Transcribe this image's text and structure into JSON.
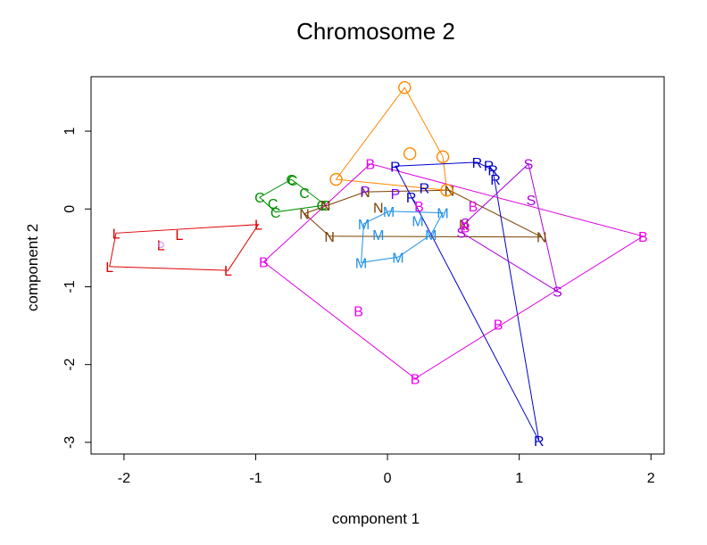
{
  "chart_data": {
    "type": "scatter",
    "title": "Chromosome 2",
    "xlabel": "component 1",
    "ylabel": "component 2",
    "xlim": [
      -2.25,
      2.1
    ],
    "ylim": [
      -3.15,
      1.7
    ],
    "xticks": [
      -2,
      -1,
      0,
      1,
      2
    ],
    "xtick_labels": [
      "-2",
      "-1",
      "0",
      "1",
      "2"
    ],
    "yticks": [
      -3,
      -2,
      -1,
      0,
      1
    ],
    "ytick_labels": [
      "-3",
      "-2",
      "-1",
      "0",
      "1"
    ],
    "grid": false,
    "series": [
      {
        "name": "L",
        "color": "#e00000",
        "points": [
          [
            -2.11,
            -0.74
          ],
          [
            -2.06,
            -0.31
          ],
          [
            -1.72,
            -0.46
          ],
          [
            -1.58,
            -0.33
          ],
          [
            -1.21,
            -0.79
          ],
          [
            -0.98,
            -0.2
          ]
        ],
        "hull": [
          [
            -2.11,
            -0.74
          ],
          [
            -2.06,
            -0.31
          ],
          [
            -0.98,
            -0.2
          ],
          [
            -1.21,
            -0.79
          ]
        ],
        "hull_color": "#e00000",
        "extra_marks": [
          {
            "symbol": "o",
            "color": "#c080ff",
            "x": -1.72,
            "y": -0.46
          }
        ]
      },
      {
        "name": "C",
        "color": "#009000",
        "points": [
          [
            -0.97,
            0.15
          ],
          [
            -0.87,
            0.07
          ],
          [
            -0.85,
            -0.04
          ],
          [
            -0.73,
            0.38
          ],
          [
            -0.72,
            0.37
          ],
          [
            -0.63,
            0.21
          ],
          [
            -0.5,
            0.05
          ],
          [
            -0.47,
            0.05
          ]
        ],
        "hull": [
          [
            -0.97,
            0.15
          ],
          [
            -0.73,
            0.38
          ],
          [
            -0.47,
            0.05
          ],
          [
            -0.85,
            -0.04
          ]
        ],
        "hull_color": "#009000"
      },
      {
        "name": "N",
        "color": "#7a4000",
        "points": [
          [
            -0.63,
            -0.06
          ],
          [
            -0.47,
            0.05
          ],
          [
            -0.44,
            -0.35
          ],
          [
            -0.17,
            0.22
          ],
          [
            -0.07,
            0.02
          ],
          [
            0.47,
            0.24
          ],
          [
            0.58,
            -0.2
          ],
          [
            1.17,
            -0.36
          ]
        ],
        "hull": [
          [
            -0.63,
            -0.06
          ],
          [
            -0.17,
            0.22
          ],
          [
            0.47,
            0.24
          ],
          [
            1.17,
            -0.36
          ],
          [
            -0.44,
            -0.35
          ]
        ],
        "hull_color": "#7a4000"
      },
      {
        "name": "O",
        "color": "#ff8800",
        "points": [
          [
            -0.39,
            0.38
          ],
          [
            0.13,
            1.56
          ],
          [
            0.17,
            0.71
          ],
          [
            0.42,
            0.67
          ],
          [
            0.45,
            0.24
          ]
        ],
        "hull": [
          [
            -0.39,
            0.38
          ],
          [
            0.13,
            1.56
          ],
          [
            0.42,
            0.67
          ],
          [
            0.45,
            0.24
          ]
        ],
        "hull_color": "#ff8800"
      },
      {
        "name": "P",
        "color": "#8000ff",
        "points": [
          [
            -0.17,
            0.23
          ],
          [
            0.06,
            0.2
          ]
        ],
        "hull": [],
        "hull_color": "#8000ff"
      },
      {
        "name": "M",
        "color": "#1e90e8",
        "points": [
          [
            -0.2,
            -0.69
          ],
          [
            -0.18,
            -0.19
          ],
          [
            -0.07,
            -0.33
          ],
          [
            0.01,
            -0.03
          ],
          [
            0.08,
            -0.62
          ],
          [
            0.23,
            -0.15
          ],
          [
            0.33,
            -0.33
          ],
          [
            0.42,
            -0.05
          ]
        ],
        "hull": [
          [
            -0.2,
            -0.69
          ],
          [
            -0.18,
            -0.19
          ],
          [
            0.01,
            -0.03
          ],
          [
            0.42,
            -0.05
          ],
          [
            0.33,
            -0.33
          ],
          [
            0.08,
            -0.62
          ]
        ],
        "hull_color": "#1e90e8"
      },
      {
        "name": "R",
        "color": "#0000cc",
        "points": [
          [
            0.06,
            0.55
          ],
          [
            0.18,
            0.15
          ],
          [
            0.28,
            0.27
          ],
          [
            0.68,
            0.6
          ],
          [
            0.77,
            0.56
          ],
          [
            0.8,
            0.5
          ],
          [
            0.82,
            0.38
          ],
          [
            1.15,
            -2.98
          ]
        ],
        "hull": [
          [
            0.06,
            0.55
          ],
          [
            0.68,
            0.6
          ],
          [
            0.8,
            0.5
          ],
          [
            1.15,
            -2.98
          ]
        ],
        "hull_color": "#0000cc"
      },
      {
        "name": "S",
        "color": "#aa00dd",
        "points": [
          [
            0.56,
            -0.3
          ],
          [
            0.59,
            -0.18
          ],
          [
            1.07,
            0.58
          ],
          [
            1.09,
            0.12
          ],
          [
            1.29,
            -1.06
          ]
        ],
        "hull": [
          [
            0.59,
            -0.18
          ],
          [
            1.07,
            0.58
          ],
          [
            1.29,
            -1.06
          ],
          [
            0.56,
            -0.3
          ]
        ],
        "hull_color": "#aa00dd"
      },
      {
        "name": "B",
        "color": "#ee00ee",
        "points": [
          [
            -0.94,
            -0.68
          ],
          [
            -0.22,
            -1.31
          ],
          [
            -0.13,
            0.58
          ],
          [
            0.24,
            0.04
          ],
          [
            0.59,
            -0.23
          ],
          [
            0.65,
            0.04
          ],
          [
            0.84,
            -1.48
          ],
          [
            1.94,
            -0.35
          ],
          [
            0.21,
            -2.18
          ]
        ],
        "hull": [
          [
            -0.94,
            -0.68
          ],
          [
            -0.13,
            0.58
          ],
          [
            1.94,
            -0.35
          ],
          [
            0.21,
            -2.18
          ]
        ],
        "hull_color": "#dd00dd"
      }
    ]
  }
}
